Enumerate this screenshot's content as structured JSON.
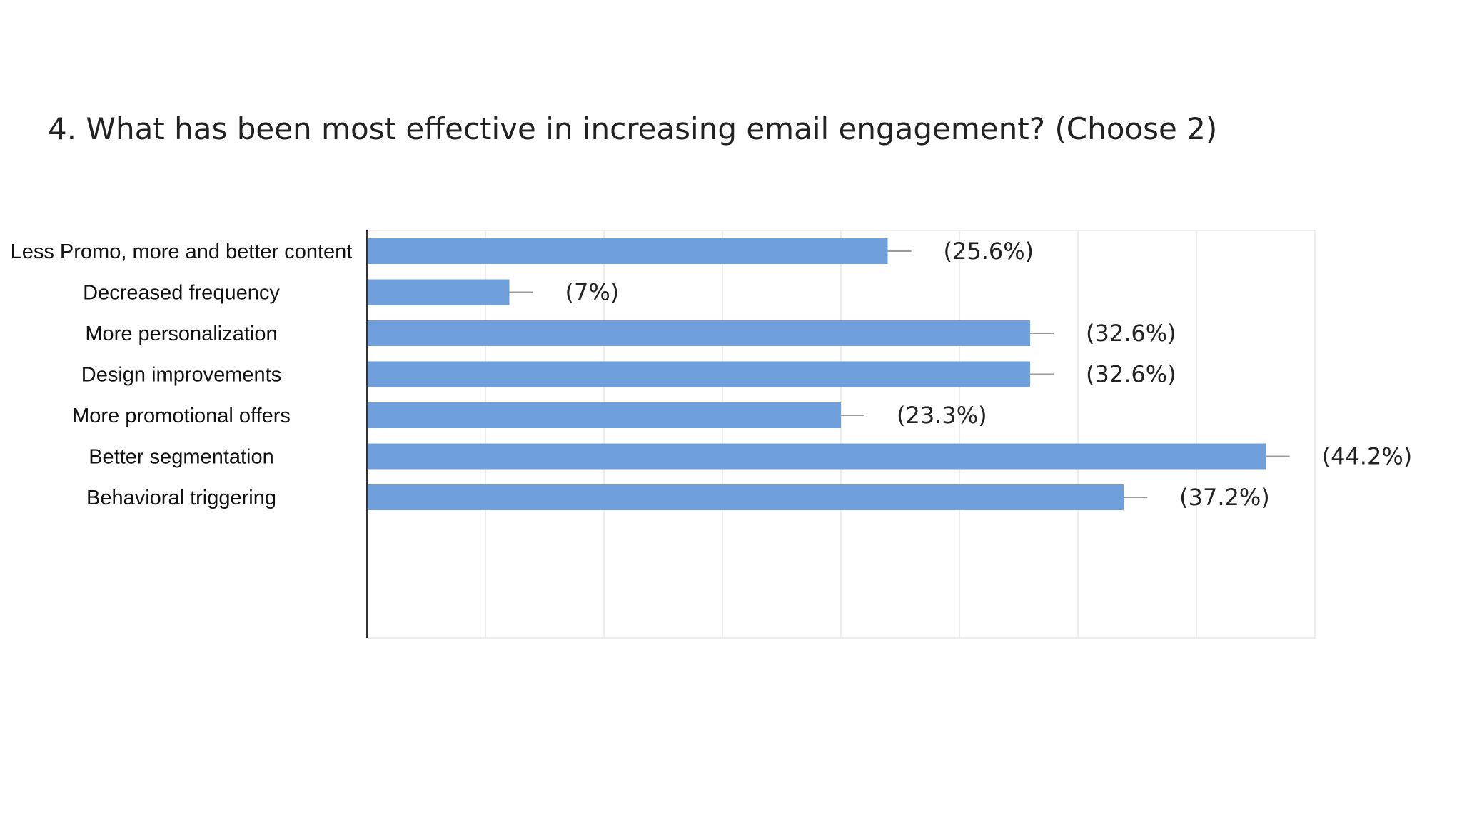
{
  "chart_data": {
    "type": "bar",
    "orientation": "horizontal",
    "title": "4. What has been most effective in increasing email engagement? (Choose 2)",
    "categories": [
      "Less Promo, more and better content",
      "Decreased frequency",
      "More personalization",
      "Design improvements",
      "More promotional offers",
      "Better segmentation",
      "Behavioral triggering"
    ],
    "values": [
      25.6,
      7,
      32.6,
      32.6,
      23.3,
      44.2,
      37.2
    ],
    "value_labels": [
      "(25.6%)",
      "(7%)",
      "(32.6%)",
      "(32.6%)",
      "(23.3%)",
      "(44.2%)",
      "(37.2%)"
    ],
    "xlim": [
      0,
      46.6
    ],
    "grid": true,
    "legend": "none",
    "bar_color": "#6fa0dc"
  }
}
